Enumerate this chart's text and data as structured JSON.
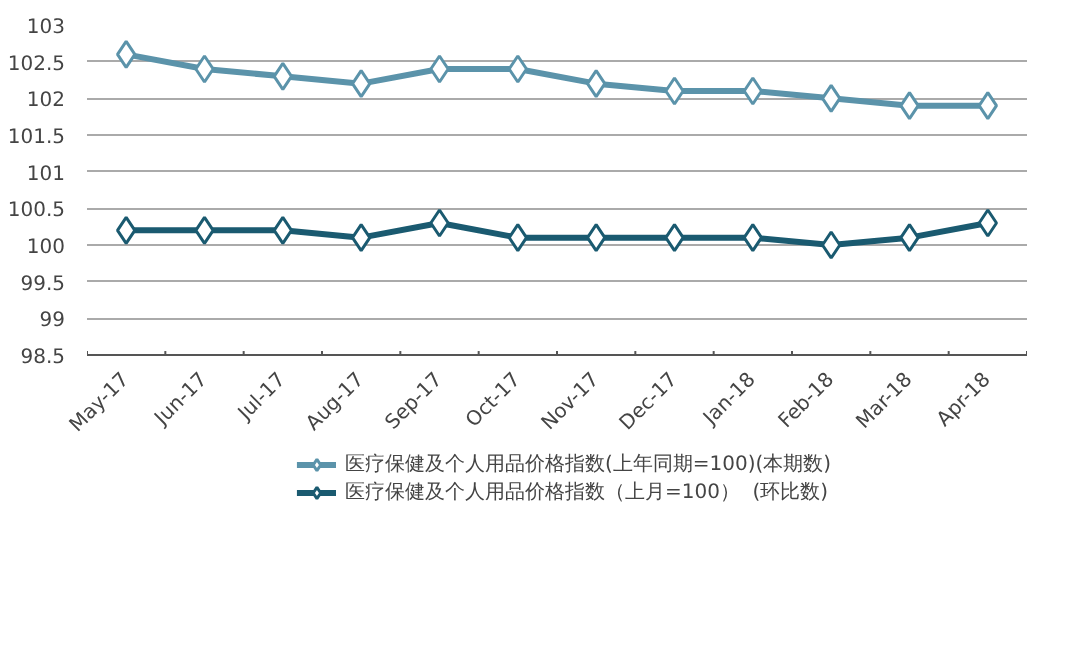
{
  "chart_data": {
    "type": "line",
    "categories": [
      "May-17",
      "Jun-17",
      "Jul-17",
      "Aug-17",
      "Sep-17",
      "Oct-17",
      "Nov-17",
      "Dec-17",
      "Jan-18",
      "Feb-18",
      "Mar-18",
      "Apr-18"
    ],
    "series": [
      {
        "name": "医疗保健及个人用品价格指数(上年同期=100)(本期数)",
        "color": "#5b93aa",
        "values": [
          102.6,
          102.4,
          102.3,
          102.2,
          102.4,
          102.4,
          102.2,
          102.1,
          102.1,
          102.0,
          101.9,
          101.9
        ]
      },
      {
        "name": "医疗保健及个人用品价格指数（上月=100）  (环比数)",
        "color": "#1a5a70",
        "values": [
          100.2,
          100.2,
          100.2,
          100.1,
          100.3,
          100.1,
          100.1,
          100.1,
          100.1,
          100.0,
          100.1,
          100.3
        ]
      }
    ],
    "ylim": [
      98.5,
      103
    ],
    "yticks": [
      98.5,
      99,
      99.5,
      100,
      100.5,
      101,
      101.5,
      102,
      102.5,
      103
    ],
    "grid": "y",
    "legend": "bottom",
    "marker": "diamond",
    "line_style": "solid"
  }
}
